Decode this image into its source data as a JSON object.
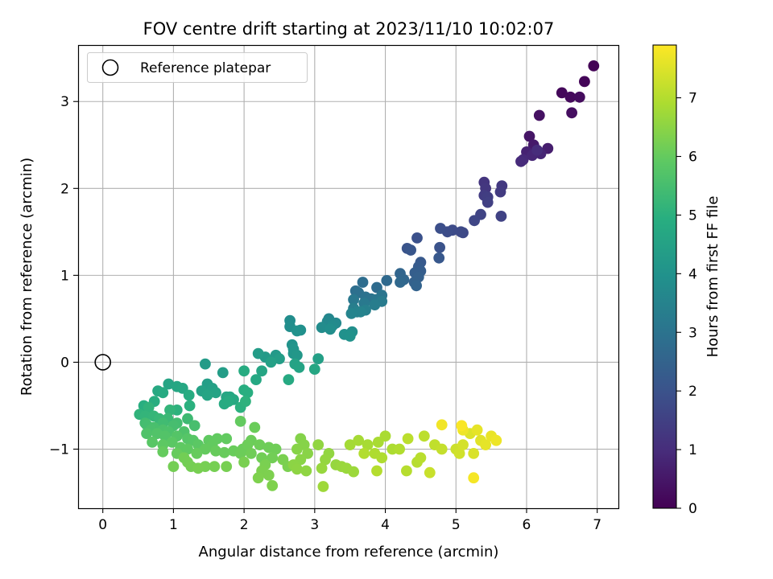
{
  "chart_data": {
    "type": "scatter",
    "title": "FOV centre drift starting at 2023/11/10 10:02:07",
    "xlabel": "Angular distance from reference (arcmin)",
    "ylabel": "Rotation from reference (arcmin)",
    "xlim": [
      -0.35,
      7.3
    ],
    "ylim": [
      -1.68,
      3.65
    ],
    "xticks": [
      0,
      1,
      2,
      3,
      4,
      5,
      6,
      7
    ],
    "yticks": [
      -1,
      0,
      1,
      2,
      3
    ],
    "grid": true,
    "legend": {
      "position": "top-left",
      "entries": [
        "Reference platepar"
      ]
    },
    "reference_point": {
      "name": "Reference platepar",
      "x": 0,
      "y": 0
    },
    "colorbar": {
      "label": "Hours from first FF file",
      "range": [
        0,
        7.9
      ],
      "ticks": [
        0,
        1,
        2,
        3,
        4,
        5,
        6,
        7
      ],
      "colormap": "viridis"
    },
    "series": [
      {
        "columns": [
          "x",
          "y",
          "hours"
        ],
        "points": [
          [
            6.95,
            3.41,
            0.05
          ],
          [
            6.82,
            3.23,
            0.1
          ],
          [
            6.5,
            3.1,
            0.15
          ],
          [
            6.62,
            3.05,
            0.2
          ],
          [
            6.75,
            3.05,
            0.25
          ],
          [
            6.64,
            2.87,
            0.3
          ],
          [
            6.18,
            2.84,
            0.35
          ],
          [
            6.04,
            2.6,
            0.45
          ],
          [
            6.1,
            2.5,
            0.55
          ],
          [
            6.3,
            2.46,
            0.65
          ],
          [
            6.0,
            2.42,
            0.75
          ],
          [
            6.2,
            2.4,
            0.8
          ],
          [
            6.08,
            2.38,
            0.85
          ],
          [
            5.95,
            2.33,
            0.9
          ],
          [
            5.92,
            2.31,
            0.95
          ],
          [
            6.15,
            2.44,
            1.0
          ],
          [
            5.4,
            2.07,
            1.2
          ],
          [
            5.42,
            2.0,
            1.25
          ],
          [
            5.65,
            2.03,
            1.3
          ],
          [
            5.63,
            1.96,
            1.35
          ],
          [
            5.4,
            1.92,
            1.4
          ],
          [
            5.45,
            1.9,
            1.45
          ],
          [
            5.45,
            1.84,
            1.5
          ],
          [
            5.64,
            1.68,
            1.55
          ],
          [
            5.35,
            1.7,
            1.6
          ],
          [
            5.26,
            1.63,
            1.65
          ],
          [
            5.1,
            1.49,
            1.7
          ],
          [
            5.07,
            1.5,
            1.75
          ],
          [
            4.95,
            1.52,
            1.8
          ],
          [
            4.88,
            1.5,
            1.85
          ],
          [
            4.78,
            1.54,
            1.9
          ],
          [
            4.45,
            1.43,
            1.95
          ],
          [
            4.77,
            1.32,
            2.0
          ],
          [
            4.31,
            1.31,
            2.05
          ],
          [
            4.36,
            1.29,
            2.1
          ],
          [
            4.76,
            1.2,
            2.15
          ],
          [
            4.5,
            1.15,
            2.2
          ],
          [
            4.47,
            1.1,
            2.25
          ],
          [
            4.5,
            1.05,
            2.3
          ],
          [
            4.42,
            1.03,
            2.35
          ],
          [
            4.47,
            0.98,
            2.4
          ],
          [
            4.41,
            0.92,
            2.45
          ],
          [
            4.44,
            0.88,
            2.5
          ],
          [
            4.21,
            1.02,
            2.55
          ],
          [
            4.26,
            0.95,
            2.6
          ],
          [
            4.21,
            0.92,
            2.65
          ],
          [
            4.02,
            0.94,
            2.7
          ],
          [
            3.88,
            0.86,
            2.75
          ],
          [
            3.68,
            0.92,
            2.8
          ],
          [
            3.58,
            0.82,
            2.85
          ],
          [
            3.62,
            0.8,
            2.9
          ],
          [
            3.72,
            0.75,
            2.95
          ],
          [
            3.8,
            0.73,
            3.0
          ],
          [
            3.95,
            0.77,
            3.05
          ],
          [
            3.87,
            0.72,
            3.1
          ],
          [
            3.55,
            0.72,
            3.15
          ],
          [
            3.7,
            0.68,
            3.2
          ],
          [
            3.95,
            0.7,
            3.25
          ],
          [
            3.85,
            0.66,
            3.3
          ],
          [
            3.55,
            0.62,
            3.35
          ],
          [
            3.72,
            0.6,
            3.4
          ],
          [
            3.6,
            0.58,
            3.45
          ],
          [
            3.65,
            0.58,
            3.5
          ],
          [
            3.52,
            0.56,
            3.55
          ],
          [
            3.2,
            0.5,
            3.6
          ],
          [
            3.18,
            0.47,
            3.65
          ],
          [
            3.3,
            0.45,
            3.7
          ],
          [
            3.25,
            0.42,
            3.75
          ],
          [
            3.1,
            0.4,
            3.8
          ],
          [
            3.22,
            0.38,
            3.85
          ],
          [
            3.53,
            0.35,
            3.9
          ],
          [
            3.42,
            0.32,
            3.95
          ],
          [
            3.5,
            0.3,
            4.0
          ],
          [
            2.65,
            0.48,
            3.82
          ],
          [
            2.65,
            0.41,
            3.87
          ],
          [
            2.8,
            0.37,
            3.92
          ],
          [
            2.75,
            0.36,
            3.97
          ],
          [
            2.68,
            0.2,
            4.02
          ],
          [
            2.7,
            0.15,
            4.07
          ],
          [
            2.7,
            0.1,
            4.12
          ],
          [
            2.75,
            0.08,
            4.17
          ],
          [
            2.45,
            0.08,
            4.22
          ],
          [
            2.3,
            0.06,
            4.27
          ],
          [
            2.2,
            0.1,
            4.32
          ],
          [
            2.5,
            0.04,
            4.37
          ],
          [
            3.05,
            0.04,
            4.42
          ],
          [
            2.38,
            0.0,
            4.47
          ],
          [
            2.72,
            -0.02,
            4.52
          ],
          [
            2.78,
            -0.06,
            4.57
          ],
          [
            2.25,
            -0.1,
            4.62
          ],
          [
            3.0,
            -0.08,
            4.67
          ],
          [
            2.17,
            -0.2,
            4.72
          ],
          [
            2.63,
            -0.2,
            4.77
          ],
          [
            2.0,
            -0.1,
            4.82
          ],
          [
            1.45,
            -0.02,
            4.3
          ],
          [
            1.7,
            -0.12,
            4.35
          ],
          [
            1.48,
            -0.25,
            4.4
          ],
          [
            1.55,
            -0.3,
            4.45
          ],
          [
            1.4,
            -0.33,
            4.5
          ],
          [
            1.6,
            -0.35,
            4.55
          ],
          [
            1.48,
            -0.38,
            4.6
          ],
          [
            1.75,
            -0.4,
            4.65
          ],
          [
            1.8,
            -0.4,
            4.7
          ],
          [
            1.85,
            -0.43,
            4.75
          ],
          [
            1.72,
            -0.48,
            4.8
          ],
          [
            1.78,
            -0.45,
            4.85
          ],
          [
            2.0,
            -0.32,
            4.9
          ],
          [
            2.05,
            -0.35,
            4.95
          ],
          [
            1.95,
            -0.52,
            5.0
          ],
          [
            2.02,
            -0.45,
            5.05
          ],
          [
            0.93,
            -0.25,
            4.6
          ],
          [
            1.05,
            -0.28,
            4.65
          ],
          [
            1.13,
            -0.3,
            4.7
          ],
          [
            0.78,
            -0.33,
            4.75
          ],
          [
            0.85,
            -0.35,
            4.8
          ],
          [
            1.22,
            -0.38,
            4.85
          ],
          [
            0.73,
            -0.45,
            4.9
          ],
          [
            0.58,
            -0.5,
            4.95
          ],
          [
            1.23,
            -0.5,
            5.0
          ],
          [
            1.05,
            -0.55,
            5.05
          ],
          [
            0.65,
            -0.52,
            5.1
          ],
          [
            0.95,
            -0.55,
            5.15
          ],
          [
            0.52,
            -0.6,
            5.1
          ],
          [
            0.6,
            -0.62,
            5.15
          ],
          [
            0.72,
            -0.62,
            5.2
          ],
          [
            0.8,
            -0.65,
            5.25
          ],
          [
            0.92,
            -0.65,
            5.3
          ],
          [
            1.2,
            -0.65,
            5.35
          ],
          [
            0.85,
            -0.7,
            5.4
          ],
          [
            0.6,
            -0.7,
            5.42
          ],
          [
            1.05,
            -0.7,
            5.45
          ],
          [
            0.62,
            -0.72,
            5.47
          ],
          [
            1.0,
            -0.73,
            5.5
          ],
          [
            1.3,
            -0.73,
            5.52
          ],
          [
            0.72,
            -0.75,
            5.55
          ],
          [
            0.68,
            -0.78,
            5.57
          ],
          [
            0.85,
            -0.78,
            5.6
          ],
          [
            0.93,
            -0.8,
            5.62
          ],
          [
            1.15,
            -0.8,
            5.65
          ],
          [
            0.62,
            -0.82,
            5.67
          ],
          [
            0.77,
            -0.82,
            5.7
          ],
          [
            0.88,
            -0.85,
            5.72
          ],
          [
            1.05,
            -0.85,
            5.75
          ],
          [
            1.2,
            -0.88,
            5.77
          ],
          [
            1.28,
            -0.9,
            5.8
          ],
          [
            0.7,
            -0.92,
            5.82
          ],
          [
            0.98,
            -0.92,
            5.85
          ],
          [
            1.35,
            -0.95,
            5.87
          ],
          [
            0.85,
            -0.95,
            5.9
          ],
          [
            1.1,
            -0.98,
            5.92
          ],
          [
            1.2,
            -1.0,
            5.94
          ],
          [
            1.5,
            -0.9,
            5.95
          ],
          [
            1.62,
            -0.88,
            5.96
          ],
          [
            1.75,
            -0.88,
            5.97
          ],
          [
            1.55,
            -0.95,
            5.98
          ],
          [
            1.95,
            -0.68,
            5.99
          ],
          [
            1.45,
            -1.0,
            6.0
          ],
          [
            0.85,
            -1.03,
            6.01
          ],
          [
            1.05,
            -1.05,
            6.02
          ],
          [
            1.33,
            -1.05,
            6.03
          ],
          [
            1.6,
            -1.02,
            6.04
          ],
          [
            1.72,
            -1.04,
            6.05
          ],
          [
            1.85,
            -1.02,
            6.06
          ],
          [
            1.98,
            -1.0,
            6.07
          ],
          [
            2.15,
            -0.75,
            6.08
          ],
          [
            2.1,
            -0.9,
            6.09
          ],
          [
            1.95,
            -1.05,
            6.1
          ],
          [
            2.05,
            -0.95,
            6.11
          ],
          [
            2.22,
            -0.95,
            6.12
          ],
          [
            2.35,
            -0.98,
            6.13
          ],
          [
            2.45,
            -1.0,
            6.14
          ],
          [
            2.1,
            -1.05,
            6.15
          ],
          [
            2.25,
            -1.1,
            6.16
          ],
          [
            2.4,
            -1.1,
            6.17
          ],
          [
            1.15,
            -1.1,
            6.18
          ],
          [
            1.2,
            -1.15,
            6.19
          ],
          [
            1.0,
            -1.2,
            6.2
          ],
          [
            1.25,
            -1.2,
            6.21
          ],
          [
            1.45,
            -1.2,
            6.22
          ],
          [
            1.58,
            -1.2,
            6.23
          ],
          [
            1.75,
            -1.2,
            6.24
          ],
          [
            1.35,
            -1.22,
            6.25
          ],
          [
            2.0,
            -1.15,
            6.26
          ],
          [
            2.3,
            -1.18,
            6.27
          ],
          [
            2.55,
            -1.12,
            6.28
          ],
          [
            2.62,
            -1.2,
            6.29
          ],
          [
            2.25,
            -1.25,
            6.3
          ],
          [
            2.35,
            -1.3,
            6.31
          ],
          [
            2.2,
            -1.33,
            6.32
          ],
          [
            2.4,
            -1.42,
            6.33
          ],
          [
            2.8,
            -0.88,
            6.4
          ],
          [
            2.85,
            -0.95,
            6.42
          ],
          [
            2.75,
            -1.0,
            6.44
          ],
          [
            2.9,
            -1.05,
            6.46
          ],
          [
            2.8,
            -1.12,
            6.48
          ],
          [
            2.7,
            -1.18,
            6.5
          ],
          [
            2.75,
            -1.23,
            6.52
          ],
          [
            2.88,
            -1.25,
            6.54
          ],
          [
            3.05,
            -0.95,
            6.56
          ],
          [
            3.2,
            -1.05,
            6.58
          ],
          [
            3.15,
            -1.12,
            6.6
          ],
          [
            3.3,
            -1.18,
            6.62
          ],
          [
            3.1,
            -1.22,
            6.64
          ],
          [
            3.38,
            -1.2,
            6.66
          ],
          [
            3.45,
            -1.22,
            6.68
          ],
          [
            3.55,
            -1.26,
            6.7
          ],
          [
            3.12,
            -1.43,
            6.72
          ],
          [
            3.5,
            -0.95,
            6.8
          ],
          [
            3.62,
            -0.9,
            6.82
          ],
          [
            3.75,
            -0.95,
            6.84
          ],
          [
            3.9,
            -0.92,
            6.86
          ],
          [
            4.0,
            -0.85,
            6.88
          ],
          [
            4.1,
            -1.0,
            6.9
          ],
          [
            3.85,
            -1.05,
            6.92
          ],
          [
            3.95,
            -1.1,
            6.94
          ],
          [
            4.2,
            -1.0,
            6.96
          ],
          [
            3.7,
            -1.05,
            6.98
          ],
          [
            3.88,
            -1.25,
            7.0
          ],
          [
            4.3,
            -1.25,
            7.02
          ],
          [
            4.45,
            -1.15,
            7.04
          ],
          [
            4.5,
            -1.1,
            7.06
          ],
          [
            4.32,
            -0.88,
            7.08
          ],
          [
            4.55,
            -0.85,
            7.1
          ],
          [
            4.7,
            -0.95,
            7.15
          ],
          [
            4.8,
            -1.0,
            7.2
          ],
          [
            4.63,
            -1.27,
            7.25
          ],
          [
            5.0,
            -1.0,
            7.3
          ],
          [
            5.05,
            -1.05,
            7.35
          ],
          [
            5.1,
            -0.95,
            7.4
          ],
          [
            5.25,
            -1.05,
            7.45
          ],
          [
            5.2,
            -0.82,
            7.5
          ],
          [
            5.35,
            -0.9,
            7.55
          ],
          [
            5.42,
            -0.95,
            7.6
          ],
          [
            5.3,
            -0.78,
            7.62
          ],
          [
            5.5,
            -0.85,
            7.65
          ],
          [
            5.57,
            -0.9,
            7.7
          ],
          [
            5.1,
            -0.78,
            7.72
          ],
          [
            4.8,
            -0.72,
            7.75
          ],
          [
            5.25,
            -1.33,
            7.8
          ],
          [
            5.08,
            -0.73,
            7.85
          ]
        ]
      }
    ]
  }
}
